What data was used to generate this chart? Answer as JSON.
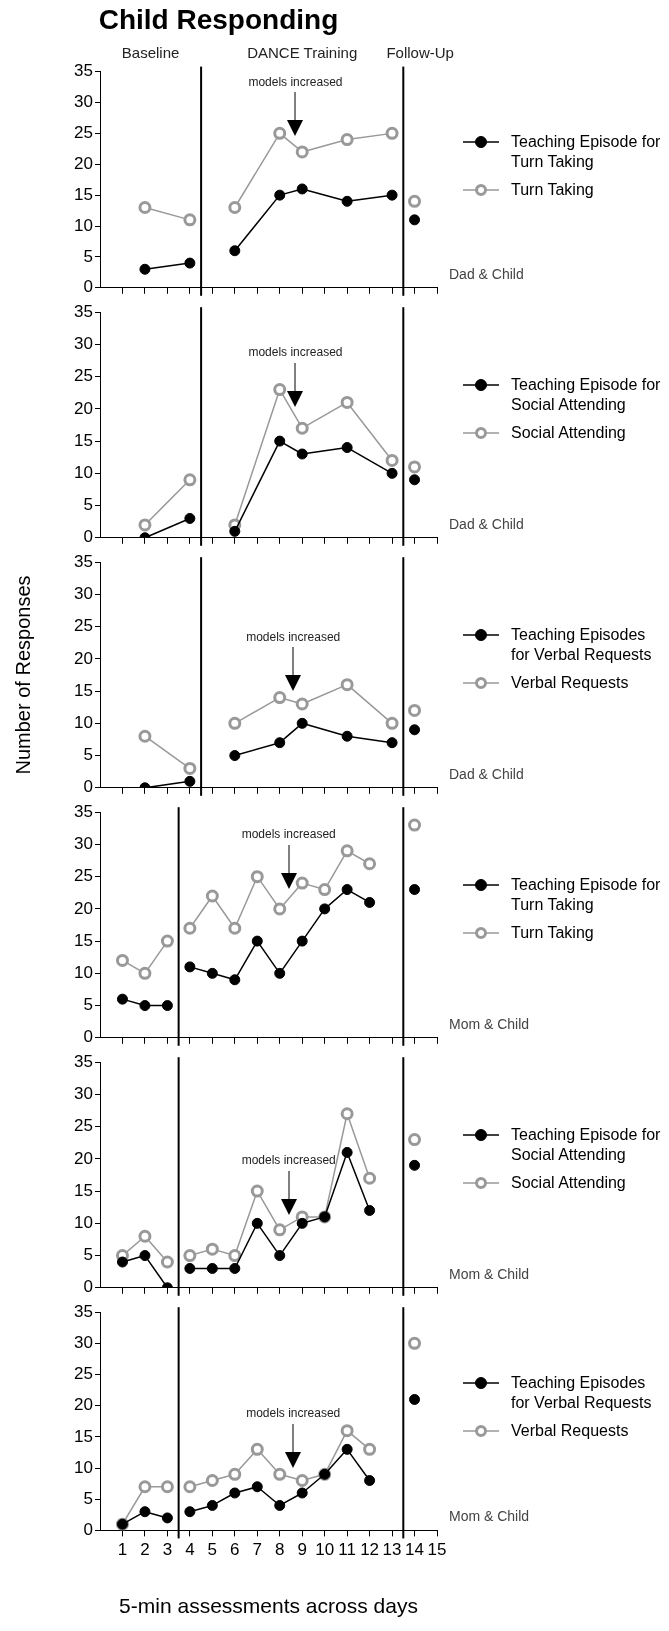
{
  "chart_data": [
    {
      "type": "line",
      "title": "Child Responding",
      "xlim": [
        0,
        15
      ],
      "xticks": [
        1,
        2,
        3,
        4,
        5,
        6,
        7,
        8,
        9,
        10,
        11,
        12,
        13,
        14,
        15
      ],
      "ylim": [
        0,
        35
      ],
      "yticks": [
        0,
        5,
        10,
        15,
        20,
        25,
        30,
        35
      ],
      "tick_labels": "y",
      "legend": "right",
      "marker": "circle",
      "series": [
        {
          "name": "Teaching Episode for Turn Taking",
          "color": "#000000",
          "x": [
            2,
            4,
            4.5,
            6,
            8,
            9,
            11,
            13,
            13.5,
            14
          ],
          "values": [
            3,
            4,
            null,
            6,
            15,
            16,
            14,
            15,
            null,
            11
          ]
        },
        {
          "name": "Turn Taking",
          "color": "#999999",
          "x": [
            2,
            4,
            4.5,
            6,
            8,
            9,
            11,
            13,
            13.5,
            14
          ],
          "values": [
            13,
            11,
            null,
            13,
            25,
            22,
            24,
            25,
            null,
            14
          ]
        }
      ],
      "ref_lines": [
        {
          "axis": "x",
          "value": 4.5
        },
        {
          "axis": "x",
          "value": 13.5
        },
        {
          "axis": "x",
          "value": 8.7,
          "label": "models increased"
        }
      ],
      "annotations": [
        "Baseline",
        "DANCE Training",
        "Follow-Up",
        "Dad & Child"
      ]
    },
    {
      "type": "line",
      "xlim": [
        0,
        15
      ],
      "xticks": [
        1,
        2,
        3,
        4,
        5,
        6,
        7,
        8,
        9,
        10,
        11,
        12,
        13,
        14,
        15
      ],
      "ylim": [
        0,
        35
      ],
      "yticks": [
        0,
        5,
        10,
        15,
        20,
        25,
        30,
        35
      ],
      "tick_labels": "y",
      "legend": "right",
      "marker": "circle",
      "series": [
        {
          "name": "Teaching Episode for Social Attending",
          "color": "#000000",
          "x": [
            2,
            4,
            4.5,
            6,
            8,
            9,
            11,
            13,
            13.5,
            14
          ],
          "values": [
            0,
            3,
            null,
            1,
            15,
            13,
            14,
            10,
            null,
            9
          ]
        },
        {
          "name": "Social Attending",
          "color": "#999999",
          "x": [
            2,
            4,
            4.5,
            6,
            8,
            9,
            11,
            13,
            13.5,
            14
          ],
          "values": [
            2,
            9,
            null,
            2,
            23,
            17,
            21,
            12,
            null,
            11
          ]
        }
      ],
      "ref_lines": [
        {
          "axis": "x",
          "value": 4.5
        },
        {
          "axis": "x",
          "value": 13.5
        },
        {
          "axis": "x",
          "value": 8.7,
          "label": "models increased"
        }
      ],
      "annotations": [
        "Dad & Child"
      ]
    },
    {
      "type": "line",
      "ylabel": "Number of Responses",
      "xlim": [
        0,
        15
      ],
      "xticks": [
        1,
        2,
        3,
        4,
        5,
        6,
        7,
        8,
        9,
        10,
        11,
        12,
        13,
        14,
        15
      ],
      "ylim": [
        0,
        35
      ],
      "yticks": [
        0,
        5,
        10,
        15,
        20,
        25,
        30,
        35
      ],
      "tick_labels": "y",
      "legend": "right",
      "marker": "circle",
      "series": [
        {
          "name": "Teaching Episodes for Verbal Requests",
          "color": "#000000",
          "x": [
            2,
            4,
            4.5,
            6,
            8,
            9,
            11,
            13,
            13.5,
            14
          ],
          "values": [
            0,
            1,
            null,
            5,
            7,
            10,
            8,
            7,
            null,
            9
          ]
        },
        {
          "name": "Verbal Requests",
          "color": "#999999",
          "x": [
            2,
            4,
            4.5,
            6,
            8,
            9,
            11,
            13,
            13.5,
            14
          ],
          "values": [
            8,
            3,
            null,
            10,
            14,
            13,
            16,
            10,
            null,
            12
          ]
        }
      ],
      "ref_lines": [
        {
          "axis": "x",
          "value": 4.5
        },
        {
          "axis": "x",
          "value": 13.5
        },
        {
          "axis": "x",
          "value": 8.6,
          "label": "models increased"
        }
      ],
      "annotations": [
        "Dad & Child"
      ]
    },
    {
      "type": "line",
      "xlim": [
        0,
        15
      ],
      "xticks": [
        1,
        2,
        3,
        4,
        5,
        6,
        7,
        8,
        9,
        10,
        11,
        12,
        13,
        14,
        15
      ],
      "ylim": [
        0,
        35
      ],
      "yticks": [
        0,
        5,
        10,
        15,
        20,
        25,
        30,
        35
      ],
      "tick_labels": "y",
      "legend": "right",
      "marker": "circle",
      "series": [
        {
          "name": "Teaching Episode for Turn Taking",
          "color": "#000000",
          "x": [
            1,
            2,
            3,
            3.5,
            4,
            5,
            6,
            7,
            8,
            9,
            10,
            11,
            12,
            13.5,
            14
          ],
          "values": [
            6,
            5,
            5,
            null,
            11,
            10,
            9,
            15,
            10,
            15,
            20,
            23,
            21,
            null,
            23
          ]
        },
        {
          "name": "Turn Taking",
          "color": "#999999",
          "x": [
            1,
            2,
            3,
            3.5,
            4,
            5,
            6,
            7,
            8,
            9,
            10,
            11,
            12,
            13.5,
            14
          ],
          "values": [
            12,
            10,
            15,
            null,
            17,
            22,
            17,
            25,
            20,
            24,
            23,
            29,
            27,
            null,
            33
          ]
        }
      ],
      "ref_lines": [
        {
          "axis": "x",
          "value": 3.5
        },
        {
          "axis": "x",
          "value": 13.5
        },
        {
          "axis": "x",
          "value": 8.4,
          "label": "models increased"
        }
      ],
      "annotations": [
        "Mom & Child"
      ]
    },
    {
      "type": "line",
      "xlim": [
        0,
        15
      ],
      "xticks": [
        1,
        2,
        3,
        4,
        5,
        6,
        7,
        8,
        9,
        10,
        11,
        12,
        13,
        14,
        15
      ],
      "ylim": [
        0,
        35
      ],
      "yticks": [
        0,
        5,
        10,
        15,
        20,
        25,
        30,
        35
      ],
      "tick_labels": "y",
      "legend": "right",
      "marker": "circle",
      "series": [
        {
          "name": "Teaching Episode for Social Attending",
          "color": "#000000",
          "x": [
            1,
            2,
            3,
            3.5,
            4,
            5,
            6,
            7,
            8,
            9,
            10,
            11,
            12,
            13.5,
            14
          ],
          "values": [
            4,
            5,
            0,
            null,
            3,
            3,
            3,
            10,
            5,
            10,
            11,
            21,
            12,
            null,
            19
          ]
        },
        {
          "name": "Social Attending",
          "color": "#999999",
          "x": [
            1,
            2,
            3,
            3.5,
            4,
            5,
            6,
            7,
            8,
            9,
            10,
            11,
            12,
            13.5,
            14
          ],
          "values": [
            5,
            8,
            4,
            null,
            5,
            6,
            5,
            15,
            9,
            11,
            11,
            27,
            17,
            null,
            23
          ]
        }
      ],
      "ref_lines": [
        {
          "axis": "x",
          "value": 3.5
        },
        {
          "axis": "x",
          "value": 13.5
        },
        {
          "axis": "x",
          "value": 8.4,
          "label": "models increased"
        }
      ],
      "annotations": [
        "Mom & Child"
      ]
    },
    {
      "type": "line",
      "xlabel": "5-min assessments across days",
      "xlim": [
        0,
        15
      ],
      "xticks": [
        1,
        2,
        3,
        4,
        5,
        6,
        7,
        8,
        9,
        10,
        11,
        12,
        13,
        14,
        15
      ],
      "ylim": [
        0,
        35
      ],
      "yticks": [
        0,
        5,
        10,
        15,
        20,
        25,
        30,
        35
      ],
      "legend": "right",
      "marker": "circle",
      "series": [
        {
          "name": "Teaching Episodes for Verbal Requests",
          "color": "#000000",
          "x": [
            1,
            2,
            3,
            3.5,
            4,
            5,
            6,
            7,
            8,
            9,
            10,
            11,
            12,
            13.5,
            14
          ],
          "values": [
            1,
            3,
            2,
            null,
            3,
            4,
            6,
            7,
            4,
            6,
            9,
            13,
            8,
            null,
            21
          ]
        },
        {
          "name": "Verbal Requests",
          "color": "#999999",
          "x": [
            1,
            2,
            3,
            3.5,
            4,
            5,
            6,
            7,
            8,
            9,
            10,
            11,
            12,
            13.5,
            14
          ],
          "values": [
            1,
            7,
            7,
            null,
            7,
            8,
            9,
            13,
            9,
            8,
            9,
            16,
            13,
            null,
            30
          ]
        }
      ],
      "ref_lines": [
        {
          "axis": "x",
          "value": 3.5
        },
        {
          "axis": "x",
          "value": 13.5
        },
        {
          "axis": "x",
          "value": 8.6,
          "label": "models increased"
        }
      ],
      "annotations": [
        "Mom & Child"
      ]
    }
  ]
}
